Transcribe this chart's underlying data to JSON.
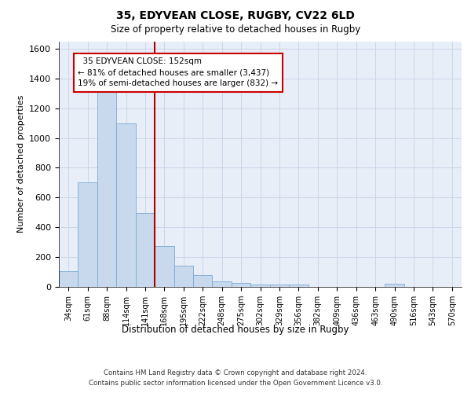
{
  "title_line1": "35, EDYVEAN CLOSE, RUGBY, CV22 6LD",
  "title_line2": "Size of property relative to detached houses in Rugby",
  "xlabel": "Distribution of detached houses by size in Rugby",
  "ylabel": "Number of detached properties",
  "footnote1": "Contains HM Land Registry data © Crown copyright and database right 2024.",
  "footnote2": "Contains public sector information licensed under the Open Government Licence v3.0.",
  "bar_labels": [
    "34sqm",
    "61sqm",
    "88sqm",
    "114sqm",
    "141sqm",
    "168sqm",
    "195sqm",
    "222sqm",
    "248sqm",
    "275sqm",
    "302sqm",
    "329sqm",
    "356sqm",
    "382sqm",
    "409sqm",
    "436sqm",
    "463sqm",
    "490sqm",
    "516sqm",
    "543sqm",
    "570sqm"
  ],
  "bar_values": [
    105,
    700,
    1330,
    1100,
    495,
    275,
    140,
    80,
    35,
    28,
    15,
    15,
    15,
    0,
    0,
    0,
    0,
    20,
    0,
    0,
    0
  ],
  "bar_color": "#c9d9ed",
  "bar_edge_color": "#7aaad0",
  "grid_color": "#ccd6e8",
  "background_color": "#e8eef8",
  "vline_x_index": 4,
  "vline_color": "#aa0000",
  "annotation_line1": "  35 EDYVEAN CLOSE: 152sqm",
  "annotation_line2": "← 81% of detached houses are smaller (3,437)",
  "annotation_line3": "19% of semi-detached houses are larger (832) →",
  "annotation_box_color": "#ffffff",
  "annotation_box_edge": "#cc0000",
  "ylim": [
    0,
    1650
  ],
  "yticks": [
    0,
    200,
    400,
    600,
    800,
    1000,
    1200,
    1400,
    1600
  ]
}
